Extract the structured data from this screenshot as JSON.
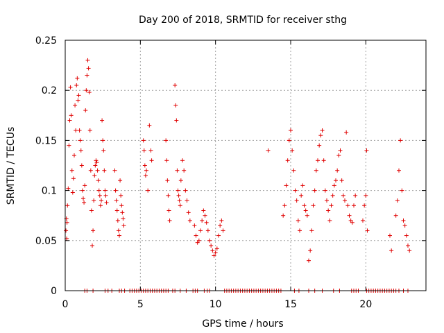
{
  "chart_data": {
    "type": "scatter",
    "title": "Day 200 of 2018, SRMTID for receiver sthg",
    "xlabel": "GPS time / hours",
    "ylabel": "SRMTID / TECUs",
    "xlim": [
      0,
      24
    ],
    "ylim": [
      0,
      0.25
    ],
    "x_ticks": [
      0,
      5,
      10,
      15,
      20
    ],
    "x_tick_labels": [
      "0",
      "5",
      "10",
      "15",
      "20"
    ],
    "y_ticks": [
      0,
      0.05,
      0.1,
      0.15,
      0.2,
      0.25
    ],
    "y_tick_labels": [
      "0",
      "0.05",
      "0.1",
      "0.15",
      "0.2",
      "0.25"
    ],
    "grid": true,
    "marker": "+",
    "color": "#e00000",
    "series": [
      {
        "name": "SRMTID",
        "points": [
          [
            0.05,
            0.06
          ],
          [
            0.08,
            0.072
          ],
          [
            0.1,
            0.052
          ],
          [
            0.12,
            0.068
          ],
          [
            0.15,
            0.085
          ],
          [
            0.2,
            0.102
          ],
          [
            0.25,
            0.145
          ],
          [
            0.3,
            0.17
          ],
          [
            0.35,
            0.203
          ],
          [
            0.4,
            0.175
          ],
          [
            0.45,
            0.12
          ],
          [
            0.5,
            0.098
          ],
          [
            0.55,
            0.112
          ],
          [
            0.6,
            0.135
          ],
          [
            0.65,
            0.185
          ],
          [
            0.7,
            0.16
          ],
          [
            0.75,
            0.205
          ],
          [
            0.8,
            0.212
          ],
          [
            0.85,
            0.19
          ],
          [
            0.9,
            0.195
          ],
          [
            0.95,
            0.16
          ],
          [
            1.0,
            0.15
          ],
          [
            1.05,
            0.14
          ],
          [
            1.1,
            0.125
          ],
          [
            1.15,
            0.1
          ],
          [
            1.2,
            0.092
          ],
          [
            1.25,
            0.088
          ],
          [
            1.3,
            0.105
          ],
          [
            1.35,
            0.18
          ],
          [
            1.4,
            0.2
          ],
          [
            1.45,
            0.215
          ],
          [
            1.5,
            0.23
          ],
          [
            1.55,
            0.222
          ],
          [
            1.6,
            0.198
          ],
          [
            1.65,
            0.16
          ],
          [
            1.7,
            0.12
          ],
          [
            1.75,
            0.08
          ],
          [
            1.8,
            0.045
          ],
          [
            1.85,
            0.06
          ],
          [
            1.9,
            0.09
          ],
          [
            1.95,
            0.115
          ],
          [
            2.0,
            0.125
          ],
          [
            2.05,
            0.13
          ],
          [
            2.1,
            0.128
          ],
          [
            2.15,
            0.12
          ],
          [
            2.2,
            0.11
          ],
          [
            2.25,
            0.1
          ],
          [
            2.3,
            0.095
          ],
          [
            2.35,
            0.085
          ],
          [
            2.4,
            0.09
          ],
          [
            2.45,
            0.17
          ],
          [
            2.5,
            0.15
          ],
          [
            2.55,
            0.14
          ],
          [
            2.6,
            0.12
          ],
          [
            2.65,
            0.1
          ],
          [
            2.7,
            0.095
          ],
          [
            2.75,
            0.088
          ],
          [
            3.3,
            0.12
          ],
          [
            3.35,
            0.1
          ],
          [
            3.4,
            0.09
          ],
          [
            3.45,
            0.08
          ],
          [
            3.5,
            0.07
          ],
          [
            3.55,
            0.06
          ],
          [
            3.6,
            0.055
          ],
          [
            3.65,
            0.11
          ],
          [
            3.7,
            0.095
          ],
          [
            3.75,
            0.085
          ],
          [
            3.8,
            0.078
          ],
          [
            3.85,
            0.072
          ],
          [
            3.9,
            0.065
          ],
          [
            5.2,
            0.15
          ],
          [
            5.25,
            0.14
          ],
          [
            5.3,
            0.125
          ],
          [
            5.35,
            0.115
          ],
          [
            5.4,
            0.12
          ],
          [
            5.5,
            0.1
          ],
          [
            5.6,
            0.165
          ],
          [
            5.7,
            0.14
          ],
          [
            5.75,
            0.13
          ],
          [
            6.7,
            0.15
          ],
          [
            6.75,
            0.13
          ],
          [
            6.8,
            0.11
          ],
          [
            6.85,
            0.095
          ],
          [
            6.9,
            0.08
          ],
          [
            6.95,
            0.07
          ],
          [
            7.3,
            0.205
          ],
          [
            7.35,
            0.185
          ],
          [
            7.4,
            0.17
          ],
          [
            7.45,
            0.12
          ],
          [
            7.5,
            0.1
          ],
          [
            7.55,
            0.095
          ],
          [
            7.6,
            0.09
          ],
          [
            7.65,
            0.085
          ],
          [
            7.7,
            0.11
          ],
          [
            7.8,
            0.13
          ],
          [
            7.9,
            0.12
          ],
          [
            8.0,
            0.1
          ],
          [
            8.1,
            0.09
          ],
          [
            8.2,
            0.078
          ],
          [
            8.3,
            0.07
          ],
          [
            8.6,
            0.065
          ],
          [
            8.7,
            0.055
          ],
          [
            8.8,
            0.048
          ],
          [
            8.9,
            0.05
          ],
          [
            9.0,
            0.06
          ],
          [
            9.1,
            0.07
          ],
          [
            9.2,
            0.08
          ],
          [
            9.3,
            0.075
          ],
          [
            9.4,
            0.068
          ],
          [
            9.5,
            0.06
          ],
          [
            9.6,
            0.05
          ],
          [
            9.7,
            0.045
          ],
          [
            9.8,
            0.04
          ],
          [
            9.9,
            0.035
          ],
          [
            10.0,
            0.038
          ],
          [
            10.1,
            0.042
          ],
          [
            10.2,
            0.055
          ],
          [
            10.3,
            0.065
          ],
          [
            10.4,
            0.07
          ],
          [
            10.5,
            0.06
          ],
          [
            13.5,
            0.14
          ],
          [
            14.5,
            0.075
          ],
          [
            14.6,
            0.085
          ],
          [
            14.7,
            0.105
          ],
          [
            14.8,
            0.13
          ],
          [
            14.9,
            0.15
          ],
          [
            15.0,
            0.16
          ],
          [
            15.1,
            0.14
          ],
          [
            15.2,
            0.12
          ],
          [
            15.3,
            0.1
          ],
          [
            15.4,
            0.09
          ],
          [
            15.5,
            0.07
          ],
          [
            15.6,
            0.06
          ],
          [
            15.7,
            0.095
          ],
          [
            15.8,
            0.105
          ],
          [
            15.9,
            0.085
          ],
          [
            16.0,
            0.08
          ],
          [
            16.1,
            0.075
          ],
          [
            16.2,
            0.03
          ],
          [
            16.3,
            0.04
          ],
          [
            16.4,
            0.06
          ],
          [
            16.5,
            0.085
          ],
          [
            16.6,
            0.1
          ],
          [
            16.7,
            0.12
          ],
          [
            16.8,
            0.13
          ],
          [
            16.9,
            0.145
          ],
          [
            17.0,
            0.155
          ],
          [
            17.1,
            0.16
          ],
          [
            17.2,
            0.13
          ],
          [
            17.3,
            0.1
          ],
          [
            17.4,
            0.09
          ],
          [
            17.5,
            0.08
          ],
          [
            17.6,
            0.07
          ],
          [
            17.7,
            0.085
          ],
          [
            17.8,
            0.095
          ],
          [
            17.9,
            0.105
          ],
          [
            18.0,
            0.11
          ],
          [
            18.1,
            0.12
          ],
          [
            18.2,
            0.135
          ],
          [
            18.3,
            0.14
          ],
          [
            18.4,
            0.11
          ],
          [
            18.5,
            0.095
          ],
          [
            18.6,
            0.09
          ],
          [
            18.7,
            0.158
          ],
          [
            18.8,
            0.085
          ],
          [
            18.9,
            0.075
          ],
          [
            19.0,
            0.07
          ],
          [
            19.1,
            0.068
          ],
          [
            19.2,
            0.085
          ],
          [
            19.3,
            0.095
          ],
          [
            19.8,
            0.07
          ],
          [
            19.9,
            0.085
          ],
          [
            20.0,
            0.095
          ],
          [
            20.05,
            0.14
          ],
          [
            20.1,
            0.06
          ],
          [
            21.6,
            0.055
          ],
          [
            21.7,
            0.04
          ],
          [
            22.0,
            0.075
          ],
          [
            22.1,
            0.09
          ],
          [
            22.2,
            0.12
          ],
          [
            22.3,
            0.15
          ],
          [
            22.4,
            0.1
          ],
          [
            22.5,
            0.07
          ],
          [
            22.6,
            0.065
          ],
          [
            22.7,
            0.055
          ],
          [
            22.8,
            0.045
          ],
          [
            22.9,
            0.04
          ]
        ]
      },
      {
        "name": "zero values",
        "points": [
          [
            1.3,
            0
          ],
          [
            1.45,
            0
          ],
          [
            1.85,
            0
          ],
          [
            2.65,
            0
          ],
          [
            2.85,
            0
          ],
          [
            3.1,
            0
          ],
          [
            3.6,
            0
          ],
          [
            3.75,
            0
          ],
          [
            3.95,
            0
          ],
          [
            4.3,
            0
          ],
          [
            4.45,
            0
          ],
          [
            4.6,
            0
          ],
          [
            4.75,
            0
          ],
          [
            4.9,
            0
          ],
          [
            5.05,
            0
          ],
          [
            5.2,
            0
          ],
          [
            5.35,
            0
          ],
          [
            5.5,
            0
          ],
          [
            5.65,
            0
          ],
          [
            5.8,
            0
          ],
          [
            5.95,
            0
          ],
          [
            6.1,
            0
          ],
          [
            6.25,
            0
          ],
          [
            6.4,
            0
          ],
          [
            6.55,
            0
          ],
          [
            6.7,
            0
          ],
          [
            6.85,
            0
          ],
          [
            7.15,
            0
          ],
          [
            7.3,
            0
          ],
          [
            7.65,
            0
          ],
          [
            8.05,
            0
          ],
          [
            8.5,
            0
          ],
          [
            8.65,
            0
          ],
          [
            8.8,
            0
          ],
          [
            9.25,
            0
          ],
          [
            9.45,
            0
          ],
          [
            9.6,
            0
          ],
          [
            10.6,
            0
          ],
          [
            10.75,
            0
          ],
          [
            10.9,
            0
          ],
          [
            11.05,
            0
          ],
          [
            11.2,
            0
          ],
          [
            11.35,
            0
          ],
          [
            11.5,
            0
          ],
          [
            11.65,
            0
          ],
          [
            11.8,
            0
          ],
          [
            11.95,
            0
          ],
          [
            12.1,
            0
          ],
          [
            12.25,
            0
          ],
          [
            12.4,
            0
          ],
          [
            12.55,
            0
          ],
          [
            12.7,
            0
          ],
          [
            12.85,
            0
          ],
          [
            13.0,
            0
          ],
          [
            13.15,
            0
          ],
          [
            13.3,
            0
          ],
          [
            13.45,
            0
          ],
          [
            13.6,
            0
          ],
          [
            13.75,
            0
          ],
          [
            13.9,
            0
          ],
          [
            14.05,
            0
          ],
          [
            14.2,
            0
          ],
          [
            14.35,
            0
          ],
          [
            15.25,
            0
          ],
          [
            15.55,
            0
          ],
          [
            16.2,
            0
          ],
          [
            16.6,
            0
          ],
          [
            17.1,
            0
          ],
          [
            17.85,
            0
          ],
          [
            18.25,
            0
          ],
          [
            19.05,
            0
          ],
          [
            19.2,
            0
          ],
          [
            19.35,
            0
          ],
          [
            19.5,
            0
          ],
          [
            20.05,
            0
          ],
          [
            20.2,
            0
          ],
          [
            20.35,
            0
          ],
          [
            20.5,
            0
          ],
          [
            20.65,
            0
          ],
          [
            20.8,
            0
          ],
          [
            20.95,
            0
          ],
          [
            21.1,
            0
          ],
          [
            21.25,
            0
          ],
          [
            21.4,
            0
          ],
          [
            21.55,
            0
          ],
          [
            21.7,
            0
          ],
          [
            21.85,
            0
          ],
          [
            22.0,
            0
          ],
          [
            22.2,
            0
          ],
          [
            22.5,
            0
          ],
          [
            22.8,
            0
          ]
        ]
      }
    ]
  }
}
